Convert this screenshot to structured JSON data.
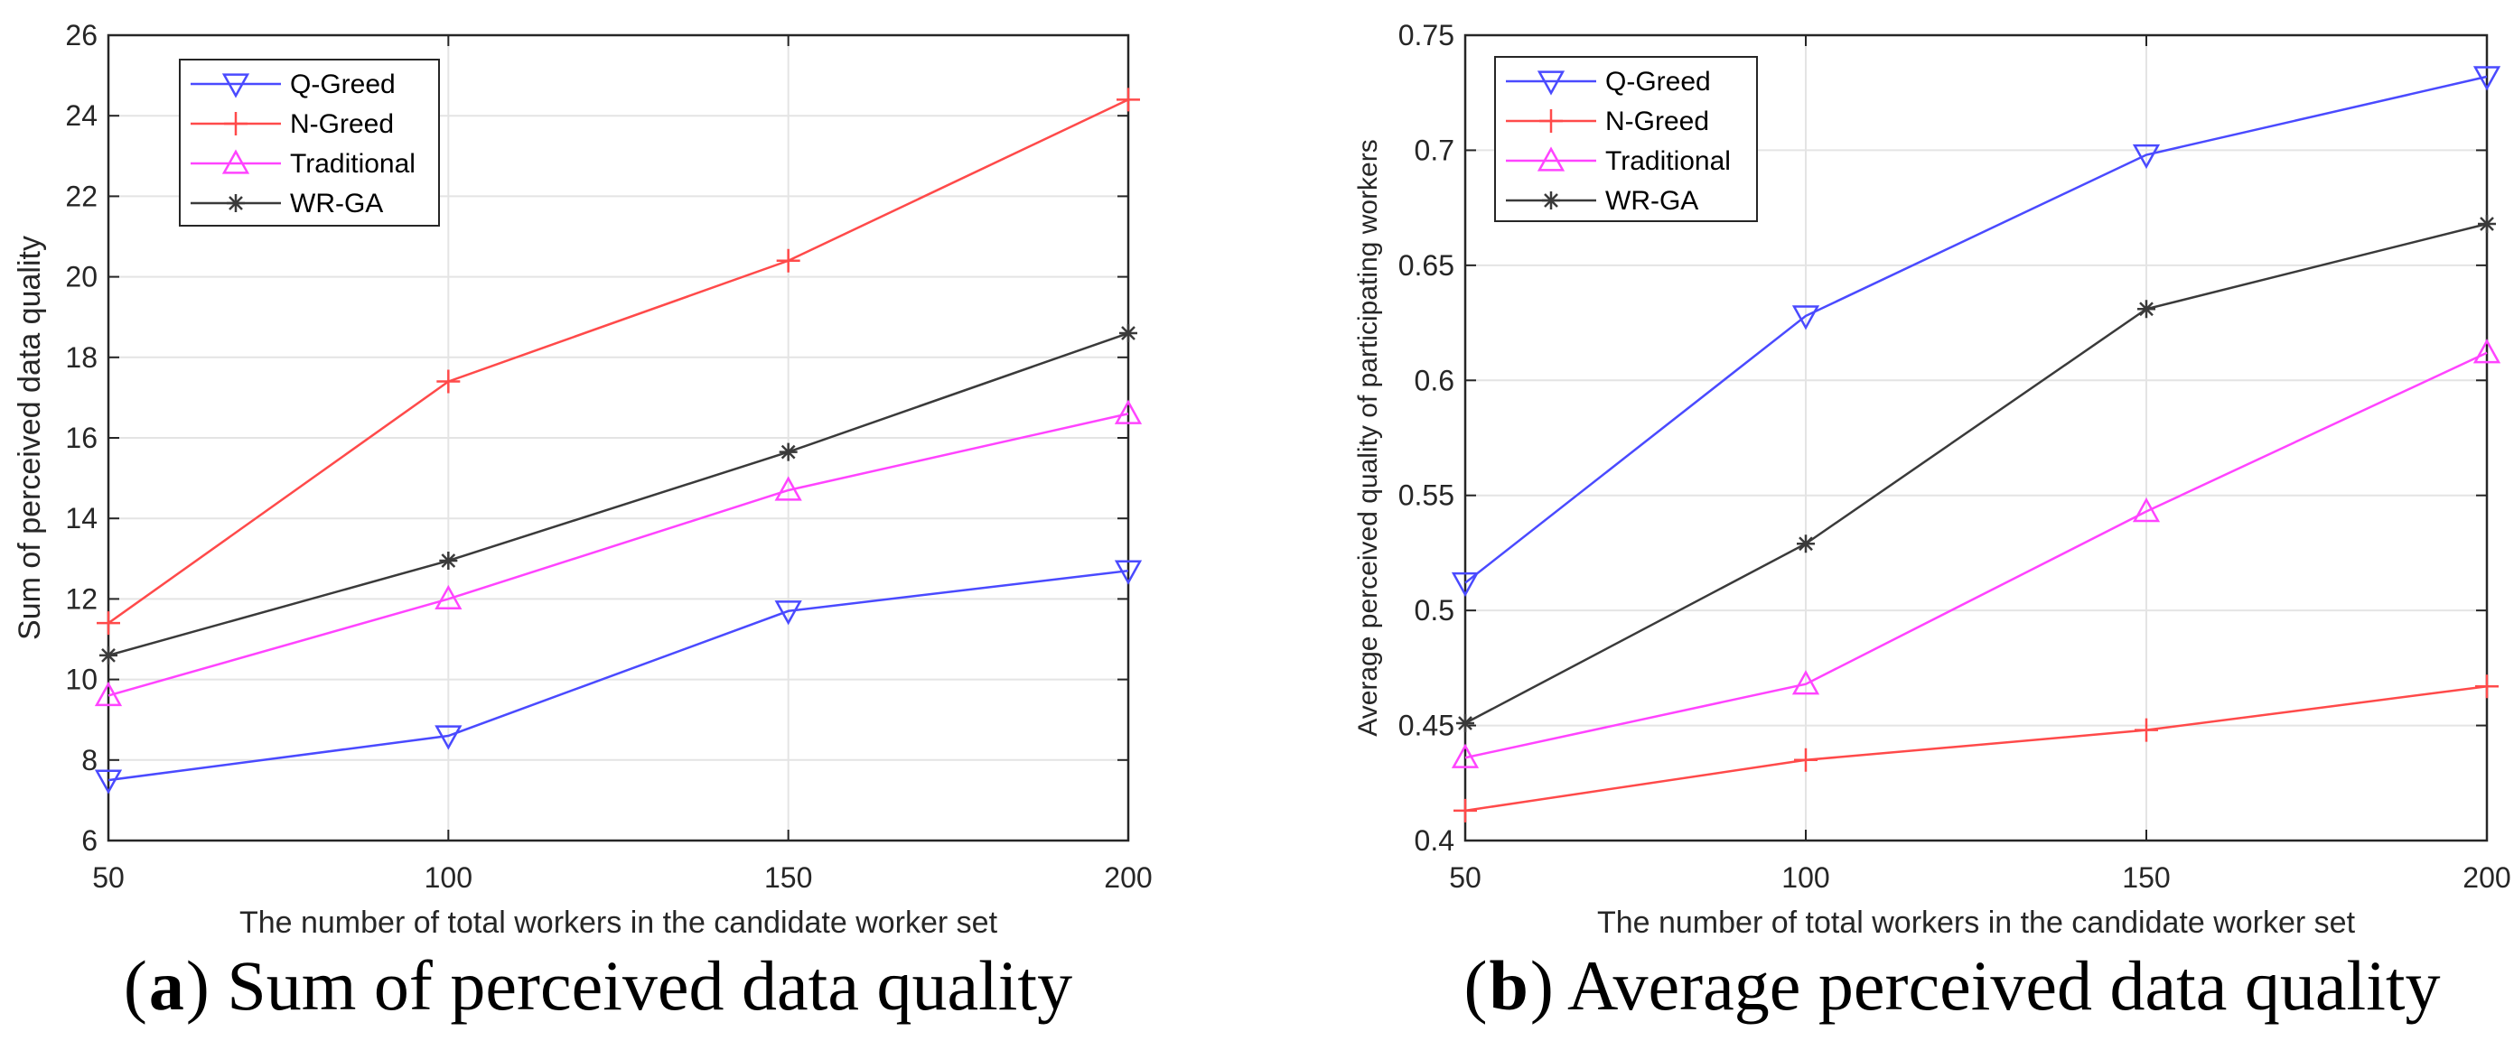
{
  "chart_data": [
    {
      "type": "line",
      "caption_letter": "a",
      "caption_text": "Sum of perceived data quality",
      "xlabel": "The number of total workers in the candidate worker set",
      "ylabel": "Sum of perceived data quality",
      "x": [
        50,
        100,
        150,
        200
      ],
      "xlim": [
        50,
        200
      ],
      "ylim": [
        6,
        26
      ],
      "xticks": [
        50,
        100,
        150,
        200
      ],
      "yticks": [
        6,
        8,
        10,
        12,
        14,
        16,
        18,
        20,
        22,
        24,
        26
      ],
      "grid": true,
      "legend_position": "top-left",
      "series": [
        {
          "name": "Q-Greed",
          "color": "#4a4aff",
          "marker": "triangle-down",
          "values": [
            7.5,
            8.6,
            11.7,
            12.7
          ]
        },
        {
          "name": "N-Greed",
          "color": "#ff4a4a",
          "marker": "plus",
          "values": [
            11.4,
            17.4,
            20.4,
            24.4
          ]
        },
        {
          "name": "Traditional",
          "color": "#ff44ff",
          "marker": "triangle-up",
          "values": [
            9.6,
            12.0,
            14.7,
            16.6
          ]
        },
        {
          "name": "WR-GA",
          "color": "#3a3a3a",
          "marker": "asterisk",
          "values": [
            10.6,
            12.95,
            15.65,
            18.6
          ]
        }
      ]
    },
    {
      "type": "line",
      "caption_letter": "b",
      "caption_text": "Average perceived data quality",
      "xlabel": "The number of total workers in the candidate worker set",
      "ylabel": "Average perceived quality of participating workers",
      "x": [
        50,
        100,
        150,
        200
      ],
      "xlim": [
        50,
        200
      ],
      "ylim": [
        0.4,
        0.75
      ],
      "xticks": [
        50,
        100,
        150,
        200
      ],
      "yticks": [
        0.4,
        0.45,
        0.5,
        0.55,
        0.6,
        0.65,
        0.7,
        0.75
      ],
      "grid": true,
      "legend_position": "top-left",
      "series": [
        {
          "name": "Q-Greed",
          "color": "#4a4aff",
          "marker": "triangle-down",
          "values": [
            0.512,
            0.628,
            0.698,
            0.732
          ]
        },
        {
          "name": "N-Greed",
          "color": "#ff4a4a",
          "marker": "plus",
          "values": [
            0.413,
            0.435,
            0.448,
            0.467
          ]
        },
        {
          "name": "Traditional",
          "color": "#ff44ff",
          "marker": "triangle-up",
          "values": [
            0.436,
            0.468,
            0.543,
            0.612
          ]
        },
        {
          "name": "WR-GA",
          "color": "#3a3a3a",
          "marker": "asterisk",
          "values": [
            0.451,
            0.529,
            0.631,
            0.668
          ]
        }
      ]
    }
  ]
}
